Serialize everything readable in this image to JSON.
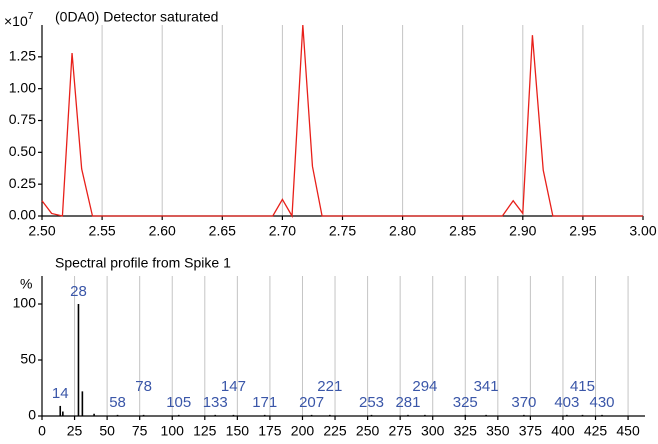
{
  "chart_data": [
    {
      "type": "line",
      "title": "(0DA0) Detector saturated",
      "y_multiplier": "×10",
      "y_multiplier_exponent": "7",
      "x": [
        2.5,
        2.508,
        2.517,
        2.525,
        2.533,
        2.542,
        2.692,
        2.7,
        2.708,
        2.717,
        2.725,
        2.733,
        2.883,
        2.892,
        2.9,
        2.908,
        2.917,
        2.925,
        3.0
      ],
      "values": [
        0.12,
        0.02,
        0,
        1.28,
        0.37,
        0,
        0,
        0.13,
        0,
        1.5,
        0.39,
        0,
        0,
        0.12,
        0.02,
        1.42,
        0.36,
        0,
        0
      ],
      "color": "#e8201a",
      "xlim": [
        2.5,
        3.0
      ],
      "xticks": [
        {
          "value": 2.5,
          "label": "2.50"
        },
        2.55,
        {
          "value": 2.6,
          "label": "2.60"
        },
        2.65,
        {
          "value": 2.7,
          "label": "2.70"
        },
        2.75,
        {
          "value": 2.8,
          "label": "2.80"
        },
        2.85,
        {
          "value": 2.9,
          "label": "2.90"
        },
        2.95,
        {
          "value": 3.0,
          "label": "3.00"
        }
      ],
      "ylim": [
        0,
        1.5
      ],
      "yticks": [
        {
          "value": 0,
          "label": "0.00"
        },
        0.25,
        {
          "value": 0.5,
          "label": "0.50"
        },
        0.75,
        {
          "value": 1,
          "label": "1.00"
        },
        1.25
      ],
      "grid": true
    },
    {
      "type": "bar",
      "title": "Spectral profile from Spike 1",
      "ylabel": "%",
      "x": [
        14,
        16,
        28,
        31,
        40,
        58,
        78,
        105,
        133,
        147,
        171,
        207,
        221,
        253,
        281,
        294,
        325,
        341,
        370,
        403,
        415,
        430
      ],
      "values": [
        9,
        4,
        100,
        22,
        2,
        1,
        1,
        1,
        1,
        1,
        1,
        1,
        1,
        1,
        1,
        1,
        1,
        1,
        1,
        1,
        1,
        1
      ],
      "peak_labels": [
        "14",
        null,
        "28",
        null,
        null,
        "58",
        "78",
        "105",
        "133",
        "147",
        "171",
        "207",
        "221",
        "253",
        "281",
        "294",
        "325",
        "341",
        "370",
        "403",
        "415",
        "430"
      ],
      "color": "#000000",
      "xlim": [
        0,
        463
      ],
      "xticks": [
        0,
        25,
        50,
        75,
        100,
        125,
        150,
        175,
        200,
        225,
        250,
        275,
        300,
        325,
        350,
        375,
        400,
        425,
        450
      ],
      "ylim": [
        0,
        125
      ],
      "yticks": [
        0,
        50,
        100
      ],
      "grid": true
    }
  ]
}
